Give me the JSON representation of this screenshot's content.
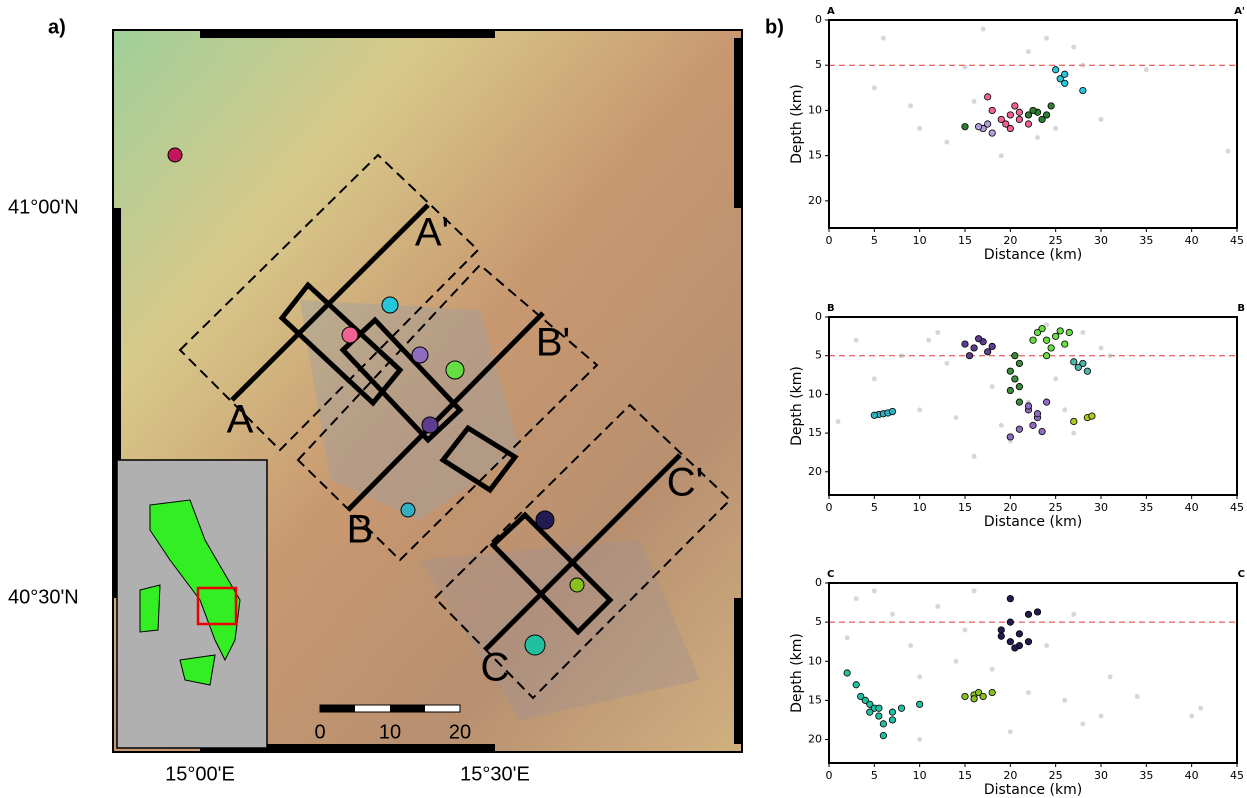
{
  "figure": {
    "panel_a": "a)",
    "panel_b": "b)"
  },
  "map": {
    "lat_labels": [
      "41°00'N",
      "40°30'N"
    ],
    "lon_labels": [
      "15°00'E",
      "15°30'E"
    ],
    "section_labels": [
      "A",
      "A'",
      "B",
      "B'",
      "C",
      "C'"
    ],
    "scale_labels": [
      "0",
      "10",
      "20"
    ]
  },
  "chart_data": [
    {
      "type": "scatter",
      "corner_labels": [
        "A",
        "A'"
      ],
      "x_label": "Distance (km)",
      "y_label": "Depth (km)",
      "xlim": [
        0,
        45
      ],
      "ylim": [
        0,
        23
      ],
      "y_inverted": true,
      "xticks": [
        0,
        5,
        10,
        15,
        20,
        25,
        30,
        35,
        40,
        45
      ],
      "yticks": [
        0,
        5,
        10,
        15,
        20
      ],
      "reference_line": 5,
      "reference_color": "#e53935",
      "series": [
        {
          "color": "#b0b0b0",
          "x": [
            5,
            6,
            9,
            10,
            13,
            15,
            16,
            17,
            22,
            24,
            25,
            27,
            28,
            30,
            35,
            44,
            19,
            23
          ],
          "values": [
            7.5,
            2,
            9.5,
            12,
            13.5,
            5.2,
            9,
            1,
            3.5,
            2,
            12,
            3,
            5,
            11,
            5.5,
            14.5,
            15,
            13
          ]
        },
        {
          "color": "#f06292",
          "x": [
            19,
            20,
            21,
            18,
            20,
            19.5,
            21,
            17.5,
            20.5,
            22
          ],
          "values": [
            11,
            10.5,
            11,
            10,
            12,
            11.5,
            10.2,
            8.5,
            9.5,
            11.5
          ]
        },
        {
          "color": "#b39ddb",
          "x": [
            17,
            17.5,
            18,
            16.5
          ],
          "values": [
            12,
            11.5,
            12.5,
            11.8
          ]
        },
        {
          "color": "#2e7d32",
          "x": [
            15,
            22,
            23,
            24,
            24.5,
            23.5,
            22.5
          ],
          "values": [
            11.8,
            10.5,
            10.2,
            10.5,
            9.5,
            11,
            10
          ]
        },
        {
          "color": "#26c6da",
          "x": [
            25,
            26,
            26,
            28,
            25.5
          ],
          "values": [
            5.5,
            6,
            7,
            7.8,
            6.5
          ]
        }
      ]
    },
    {
      "type": "scatter",
      "corner_labels": [
        "B",
        "B"
      ],
      "x_label": "Distance (km)",
      "y_label": "Depth (km)",
      "xlim": [
        0,
        45
      ],
      "ylim": [
        0,
        23
      ],
      "y_inverted": true,
      "xticks": [
        0,
        5,
        10,
        15,
        20,
        25,
        30,
        35,
        40,
        45
      ],
      "yticks": [
        0,
        5,
        10,
        15,
        20
      ],
      "reference_line": 5,
      "reference_color": "#e53935",
      "series": [
        {
          "color": "#b0b0b0",
          "x": [
            1,
            3,
            5,
            7,
            8,
            10,
            12,
            13,
            14,
            16,
            18,
            19,
            22,
            25,
            26,
            28,
            30,
            31,
            27,
            20,
            24,
            11
          ],
          "values": [
            13.5,
            3,
            8,
            12.5,
            5,
            12,
            2,
            6,
            13,
            18,
            9,
            14,
            11,
            8,
            12,
            2,
            4,
            5,
            15,
            16,
            1,
            3
          ]
        },
        {
          "color": "#5e3c8f",
          "x": [
            15,
            16,
            17,
            18,
            16.5,
            15.5,
            17.5
          ],
          "values": [
            3.5,
            4,
            3.2,
            3.8,
            2.8,
            5,
            4.5
          ]
        },
        {
          "color": "#66dd44",
          "x": [
            23,
            24,
            25,
            26,
            24.5,
            23.5,
            25.5,
            22.5,
            24,
            26.5
          ],
          "values": [
            2,
            3,
            2.5,
            3.5,
            4,
            1.5,
            1.8,
            3,
            5,
            2
          ]
        },
        {
          "color": "#3a8a3a",
          "x": [
            20,
            20.5,
            21,
            20,
            21,
            20.5,
            21
          ],
          "values": [
            7,
            8,
            9,
            9.5,
            11,
            5,
            6
          ]
        },
        {
          "color": "#8e6cc0",
          "x": [
            22,
            23,
            22.5,
            23,
            21,
            20,
            24,
            23.5,
            22
          ],
          "values": [
            12,
            13,
            14,
            12.5,
            14.5,
            15.5,
            11,
            14.8,
            11.5
          ]
        },
        {
          "color": "#4db6ac",
          "x": [
            28,
            27.5,
            28.5,
            27
          ],
          "values": [
            6,
            6.5,
            7,
            5.8
          ]
        },
        {
          "color": "#30b0c0",
          "x": [
            5.5,
            6,
            6.5,
            7,
            5
          ],
          "values": [
            12.6,
            12.5,
            12.4,
            12.2,
            12.7
          ]
        },
        {
          "color": "#aacc22",
          "x": [
            27,
            28.5,
            29
          ],
          "values": [
            13.5,
            13,
            12.8
          ]
        }
      ]
    },
    {
      "type": "scatter",
      "corner_labels": [
        "C",
        "C"
      ],
      "x_label": "Distance (km)",
      "y_label": "Depth (km)",
      "xlim": [
        0,
        45
      ],
      "ylim": [
        0,
        23
      ],
      "y_inverted": true,
      "xticks": [
        0,
        5,
        10,
        15,
        20,
        25,
        30,
        35,
        40,
        45
      ],
      "yticks": [
        0,
        5,
        10,
        15,
        20
      ],
      "reference_line": 5,
      "reference_color": "#e53935",
      "series": [
        {
          "color": "#b0b0b0",
          "x": [
            2,
            3,
            7,
            9,
            10,
            12,
            14,
            15,
            16,
            18,
            22,
            24,
            26,
            27,
            28,
            30,
            31,
            34,
            40,
            41,
            10,
            5,
            20
          ],
          "values": [
            7,
            2,
            4,
            8,
            12,
            3,
            10,
            6,
            1,
            11,
            14,
            8,
            15,
            4,
            18,
            17,
            12,
            14.5,
            17,
            16,
            20,
            1,
            19
          ]
        },
        {
          "color": "#231c52",
          "x": [
            19,
            20,
            20,
            21,
            22,
            20,
            21,
            22,
            19,
            20.5,
            23
          ],
          "values": [
            6,
            5,
            2,
            6.5,
            4,
            7.5,
            8,
            7.5,
            6.8,
            8.3,
            3.7
          ]
        },
        {
          "color": "#20c0a0",
          "x": [
            2,
            3,
            3.5,
            4,
            4.5,
            5,
            5.5,
            6,
            6,
            7,
            8,
            10,
            4.5,
            5.5,
            7
          ],
          "values": [
            11.5,
            13,
            14.5,
            15,
            15.5,
            16,
            17,
            18,
            19.5,
            17.5,
            16,
            15.5,
            16.5,
            16,
            16.5
          ]
        },
        {
          "color": "#88c020",
          "x": [
            15,
            16,
            16.5,
            17,
            18,
            16
          ],
          "values": [
            14.5,
            14.3,
            14,
            14.5,
            14,
            14.8
          ]
        }
      ]
    }
  ]
}
